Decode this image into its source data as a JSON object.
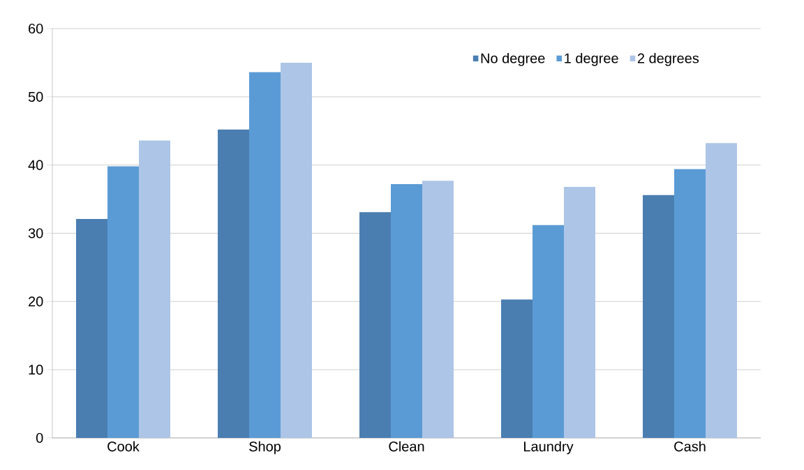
{
  "chart_data": {
    "type": "bar",
    "categories": [
      "Cook",
      "Shop",
      "Clean",
      "Laundry",
      "Cash"
    ],
    "series": [
      {
        "name": "No degree",
        "color": "#4a7eb1",
        "values": [
          32.1,
          45.2,
          33.1,
          20.3,
          35.6
        ]
      },
      {
        "name": "1 degree",
        "color": "#5b9bd5",
        "values": [
          39.8,
          53.6,
          37.2,
          31.2,
          39.4
        ]
      },
      {
        "name": "2 degrees",
        "color": "#adc5e6",
        "values": [
          43.6,
          55.0,
          37.7,
          36.8,
          43.2
        ]
      }
    ],
    "ylim": [
      0,
      60
    ],
    "yticks": [
      0,
      10,
      20,
      30,
      40,
      50,
      60
    ],
    "grid": "y",
    "legend": "top right"
  }
}
